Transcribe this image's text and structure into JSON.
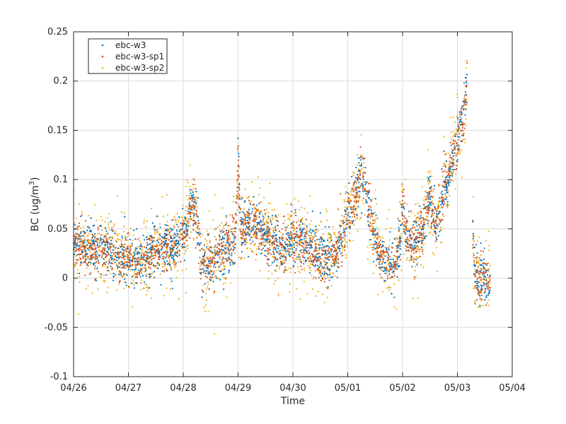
{
  "chart_data": {
    "type": "scatter",
    "xlabel": "Time",
    "ylabel": "BC (ug/m³)",
    "ylabel_base": "BC (ug/m",
    "ylabel_sup": "3",
    "ylabel_close": ")",
    "xlim": [
      "04/26",
      "05/04"
    ],
    "ylim": [
      -0.1,
      0.25
    ],
    "x_ticks": [
      "04/26",
      "04/27",
      "04/28",
      "04/29",
      "04/30",
      "05/01",
      "05/02",
      "05/03",
      "05/04"
    ],
    "y_ticks": [
      -0.1,
      -0.05,
      0,
      0.05,
      0.1,
      0.15,
      0.2,
      0.25
    ],
    "y_tick_labels": [
      "-0.1",
      "-0.05",
      "0",
      "0.05",
      "0.1",
      "0.15",
      "0.2",
      "0.25"
    ],
    "grid": true,
    "legend_position": "top-left",
    "series": [
      {
        "name": "ebc-w3",
        "color": "#0072BD"
      },
      {
        "name": "ebc-w3-sp1",
        "color": "#D95319"
      },
      {
        "name": "ebc-w3-sp2",
        "color": "#EDB120"
      }
    ],
    "x_unit": "days from 04/26",
    "trend_x": [
      0,
      0.3,
      0.5,
      0.8,
      1.0,
      1.3,
      1.6,
      1.9,
      2.05,
      2.15,
      2.25,
      2.35,
      2.6,
      2.95,
      3.0,
      3.05,
      3.3,
      3.6,
      3.8,
      4.0,
      4.3,
      4.6,
      4.8,
      5.0,
      5.15,
      5.25,
      5.35,
      5.6,
      5.85,
      5.95,
      6.0,
      6.05,
      6.15,
      6.3,
      6.45,
      6.5,
      6.6,
      6.75,
      6.85,
      6.95,
      7.1,
      7.15,
      7.2,
      7.25,
      7.28,
      7.32,
      7.45,
      7.6
    ],
    "trend_y": [
      0.035,
      0.028,
      0.03,
      0.022,
      0.018,
      0.02,
      0.03,
      0.035,
      0.05,
      0.075,
      0.06,
      0.01,
      0.02,
      0.04,
      0.12,
      0.05,
      0.055,
      0.04,
      0.03,
      0.04,
      0.03,
      0.015,
      0.03,
      0.06,
      0.09,
      0.11,
      0.08,
      0.02,
      0.015,
      0.03,
      0.08,
      0.045,
      0.035,
      0.04,
      0.07,
      0.085,
      0.05,
      0.09,
      0.11,
      0.13,
      0.155,
      0.19,
      0.2,
      0.185,
      0.05,
      0.0,
      0.0,
      0.0
    ]
  }
}
